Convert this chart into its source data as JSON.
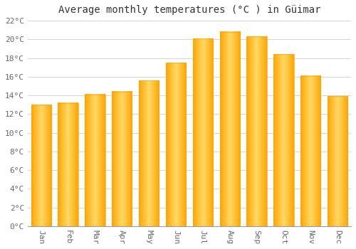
{
  "months": [
    "Jan",
    "Feb",
    "Mar",
    "Apr",
    "May",
    "Jun",
    "Jul",
    "Aug",
    "Sep",
    "Oct",
    "Nov",
    "Dec"
  ],
  "values": [
    13.0,
    13.2,
    14.1,
    14.4,
    15.6,
    17.5,
    20.1,
    20.8,
    20.3,
    18.4,
    16.1,
    13.9
  ],
  "bar_color_center": "#FFD966",
  "bar_color_edge": "#FFA500",
  "title": "Average monthly temperatures (°C ) in Güimar",
  "ylim": [
    0,
    22
  ],
  "ytick_step": 2,
  "background_color": "#FFFFFF",
  "grid_color": "#CCCCCC",
  "title_fontsize": 10,
  "tick_fontsize": 8,
  "font_family": "monospace"
}
